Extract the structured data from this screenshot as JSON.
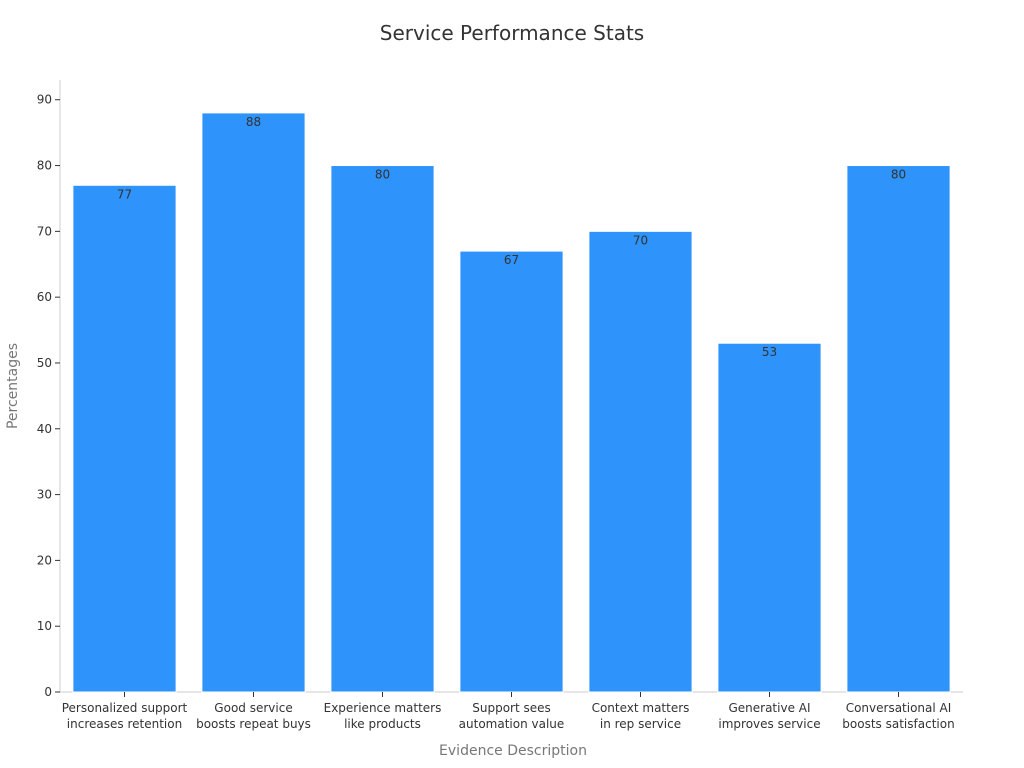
{
  "chart_data": {
    "type": "bar",
    "title": "Service Performance Stats",
    "xlabel": "Evidence Description",
    "ylabel": "Percentages",
    "categories": [
      [
        "Personalized support",
        "increases retention"
      ],
      [
        "Good service",
        "boosts repeat buys"
      ],
      [
        "Experience matters",
        "like products"
      ],
      [
        "Support sees",
        "automation value"
      ],
      [
        "Context matters",
        "in rep service"
      ],
      [
        "Generative AI",
        "improves service"
      ],
      [
        "Conversational AI",
        "boosts satisfaction"
      ]
    ],
    "values": [
      77,
      88,
      80,
      67,
      70,
      53,
      80
    ],
    "ylim": [
      0,
      93
    ],
    "yticks": [
      0,
      10,
      20,
      30,
      40,
      50,
      60,
      70,
      80,
      90
    ],
    "grid": false,
    "legend": "none",
    "colors": {
      "bar": "#2e93fa",
      "bar_edge": "#ffffff",
      "axis": "#cccccc",
      "text": "#333333",
      "axis_label": "#777777"
    }
  }
}
